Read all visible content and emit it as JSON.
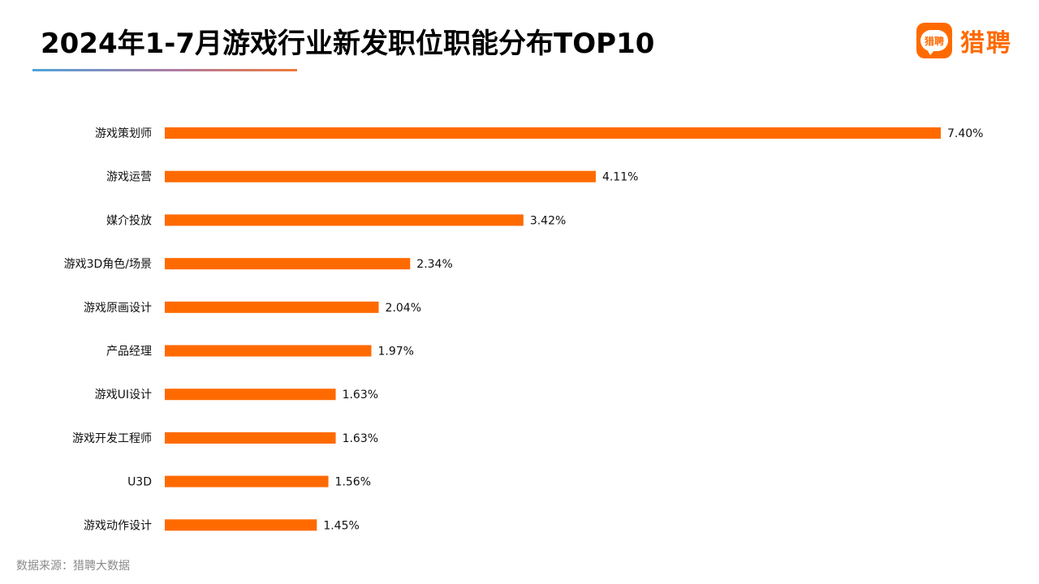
{
  "header": {
    "title": "2024年1-7月游戏行业新发职位职能分布TOP10"
  },
  "logo": {
    "badge_text": "猎聘",
    "text": "猎聘",
    "brand_color": "#ff6a00"
  },
  "footer": {
    "source": "数据来源：猎聘大数据"
  },
  "chart_data": {
    "type": "bar",
    "orientation": "horizontal",
    "title": "2024年1-7月游戏行业新发职位职能分布TOP10",
    "categories": [
      "游戏策划师",
      "游戏运营",
      "媒介投放",
      "游戏3D角色/场景",
      "游戏原画设计",
      "产品经理",
      "游戏UI设计",
      "游戏开发工程师",
      "U3D",
      "游戏动作设计"
    ],
    "values": [
      7.4,
      4.11,
      3.42,
      2.34,
      2.04,
      1.97,
      1.63,
      1.63,
      1.56,
      1.45
    ],
    "value_labels": [
      "7.40%",
      "4.11%",
      "3.42%",
      "2.34%",
      "2.04%",
      "1.97%",
      "1.63%",
      "1.63%",
      "1.56%",
      "1.45%"
    ],
    "unit": "%",
    "bar_color": "#ff6a00",
    "grid": false,
    "legend": "none"
  }
}
